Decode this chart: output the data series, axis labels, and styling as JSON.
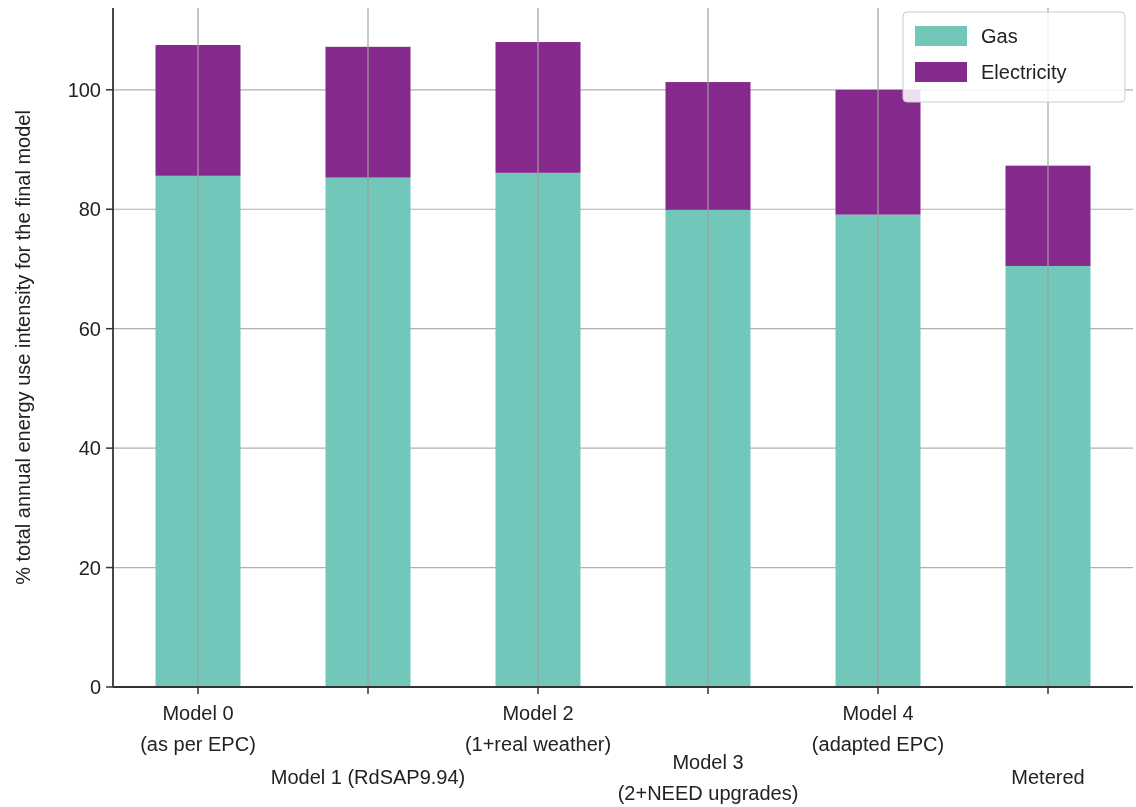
{
  "chart_data": {
    "type": "bar",
    "stacked": true,
    "ylabel": "% total annual energy use intensity for the final model",
    "categories": [
      "Model 0\n(as per EPC)",
      "Model 1 (RdSAP9.94)",
      "Model 2\n(1+real weather)",
      "Model 3\n(2+NEED upgrades)",
      "Model 4\n(adapted EPC)",
      "Metered"
    ],
    "series": [
      {
        "name": "Gas",
        "color": "#72c7bb",
        "values": [
          85.6,
          85.3,
          86.1,
          79.9,
          79.1,
          70.5
        ]
      },
      {
        "name": "Electricity",
        "color": "#86298c",
        "values": [
          21.9,
          21.9,
          21.9,
          21.4,
          20.9,
          16.8
        ]
      }
    ],
    "ylim": [
      0,
      113.7
    ],
    "yticks": [
      0,
      20,
      40,
      60,
      80,
      100
    ],
    "grid": true,
    "legend": "top right"
  }
}
